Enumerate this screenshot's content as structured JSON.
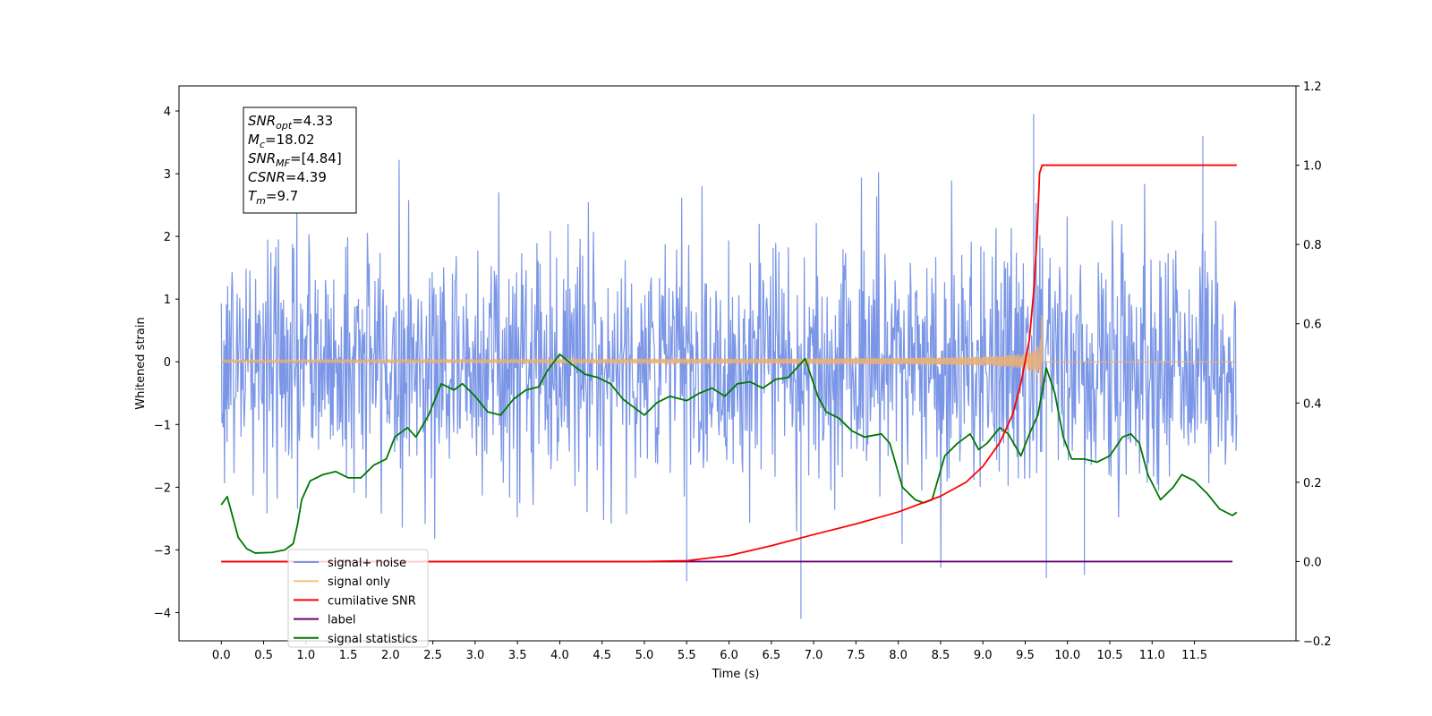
{
  "chart_data": {
    "type": "line",
    "xlabel": "Time (s)",
    "ylabel": "Whitened strain",
    "xlim": [
      -0.5,
      12.7
    ],
    "ylim": [
      -4.45,
      4.4
    ],
    "y2lim": [
      -0.2,
      1.2
    ],
    "x_ticks": [
      "0.0",
      "0.5",
      "1.0",
      "1.5",
      "2.0",
      "2.5",
      "3.0",
      "3.5",
      "4.0",
      "4.5",
      "5.0",
      "5.5",
      "6.0",
      "6.5",
      "7.0",
      "7.5",
      "8.0",
      "8.5",
      "9.0",
      "9.5",
      "10.0",
      "10.5",
      "11.0",
      "11.5"
    ],
    "y_ticks": [
      "4",
      "3",
      "2",
      "1",
      "0",
      "−1",
      "−2",
      "−3",
      "−4"
    ],
    "y2_ticks": [
      "1.2",
      "1.0",
      "0.8",
      "0.6",
      "0.4",
      "0.2",
      "0.0",
      "−0.2"
    ],
    "annotation": {
      "lines": [
        {
          "main": "SNR",
          "sub": "opt",
          "rest": "=4.33"
        },
        {
          "main": "M",
          "sub": "c",
          "rest": "=18.02"
        },
        {
          "main": "SNR",
          "sub": "MF",
          "rest": "=[4.84]"
        },
        {
          "main": "CSNR",
          "sub": "",
          "rest": "=4.39"
        },
        {
          "main": "T",
          "sub": "m",
          "rest": "=9.7"
        }
      ]
    },
    "legend": {
      "placement": "bottom-left",
      "entries": [
        {
          "label": "signal+ noise",
          "color": "#7b96e6"
        },
        {
          "label": "signal only",
          "color": "#f5c37a"
        },
        {
          "label": "cumilative SNR",
          "color": "#ff0000"
        },
        {
          "label": "label",
          "color": "#6b006b"
        },
        {
          "label": "signal statistics",
          "color": "#007700"
        }
      ]
    },
    "series": [
      {
        "name": "signal+ noise",
        "axis": "left",
        "color": "#7b96e6",
        "x_range": [
          0.0,
          12.0
        ],
        "samples": 1600,
        "amplitude_std": 1.0,
        "observed_max": 3.95,
        "observed_min": -4.1
      },
      {
        "name": "signal only",
        "axis": "left",
        "color": "#e8b07a",
        "x_range": [
          0.0,
          12.0
        ],
        "chirp_end": 9.7,
        "peak_amplitude": 0.75
      },
      {
        "name": "cumilative SNR",
        "axis": "right",
        "color": "#ff0000",
        "points": [
          [
            0,
            0
          ],
          [
            5.0,
            0
          ],
          [
            5.5,
            0.002
          ],
          [
            6.0,
            0.015
          ],
          [
            6.5,
            0.04
          ],
          [
            7.0,
            0.068
          ],
          [
            7.5,
            0.095
          ],
          [
            8.0,
            0.125
          ],
          [
            8.5,
            0.165
          ],
          [
            8.8,
            0.2
          ],
          [
            9.0,
            0.24
          ],
          [
            9.2,
            0.3
          ],
          [
            9.35,
            0.37
          ],
          [
            9.45,
            0.45
          ],
          [
            9.55,
            0.56
          ],
          [
            9.6,
            0.68
          ],
          [
            9.64,
            0.82
          ],
          [
            9.67,
            0.98
          ],
          [
            9.7,
            1.0
          ],
          [
            12.0,
            1.0
          ]
        ]
      },
      {
        "name": "label",
        "axis": "right",
        "color": "#6b006b",
        "points": [
          [
            0,
            0
          ],
          [
            11.95,
            0
          ]
        ]
      },
      {
        "name": "signal statistics",
        "axis": "left",
        "color": "#007700",
        "points": [
          [
            0,
            -2.28
          ],
          [
            0.07,
            -2.15
          ],
          [
            0.12,
            -2.4
          ],
          [
            0.2,
            -2.8
          ],
          [
            0.3,
            -2.98
          ],
          [
            0.4,
            -3.05
          ],
          [
            0.6,
            -3.04
          ],
          [
            0.75,
            -3.0
          ],
          [
            0.85,
            -2.9
          ],
          [
            0.9,
            -2.6
          ],
          [
            0.95,
            -2.2
          ],
          [
            1.05,
            -1.9
          ],
          [
            1.2,
            -1.8
          ],
          [
            1.35,
            -1.75
          ],
          [
            1.5,
            -1.85
          ],
          [
            1.65,
            -1.85
          ],
          [
            1.8,
            -1.65
          ],
          [
            1.95,
            -1.55
          ],
          [
            2.05,
            -1.2
          ],
          [
            2.2,
            -1.05
          ],
          [
            2.3,
            -1.2
          ],
          [
            2.45,
            -0.85
          ],
          [
            2.6,
            -0.35
          ],
          [
            2.75,
            -0.45
          ],
          [
            2.85,
            -0.35
          ],
          [
            3.0,
            -0.55
          ],
          [
            3.15,
            -0.8
          ],
          [
            3.3,
            -0.85
          ],
          [
            3.45,
            -0.6
          ],
          [
            3.6,
            -0.45
          ],
          [
            3.75,
            -0.4
          ],
          [
            3.85,
            -0.15
          ],
          [
            4.0,
            0.12
          ],
          [
            4.15,
            -0.05
          ],
          [
            4.3,
            -0.2
          ],
          [
            4.45,
            -0.25
          ],
          [
            4.6,
            -0.35
          ],
          [
            4.75,
            -0.6
          ],
          [
            4.9,
            -0.75
          ],
          [
            5.0,
            -0.85
          ],
          [
            5.15,
            -0.65
          ],
          [
            5.3,
            -0.55
          ],
          [
            5.5,
            -0.62
          ],
          [
            5.65,
            -0.5
          ],
          [
            5.8,
            -0.42
          ],
          [
            5.95,
            -0.55
          ],
          [
            6.1,
            -0.35
          ],
          [
            6.25,
            -0.32
          ],
          [
            6.4,
            -0.42
          ],
          [
            6.55,
            -0.28
          ],
          [
            6.7,
            -0.25
          ],
          [
            6.9,
            0.05
          ],
          [
            7.05,
            -0.55
          ],
          [
            7.15,
            -0.8
          ],
          [
            7.3,
            -0.9
          ],
          [
            7.45,
            -1.1
          ],
          [
            7.6,
            -1.2
          ],
          [
            7.8,
            -1.15
          ],
          [
            7.9,
            -1.3
          ],
          [
            8.05,
            -2.0
          ],
          [
            8.2,
            -2.2
          ],
          [
            8.3,
            -2.25
          ],
          [
            8.4,
            -2.2
          ],
          [
            8.55,
            -1.5
          ],
          [
            8.7,
            -1.3
          ],
          [
            8.85,
            -1.15
          ],
          [
            8.95,
            -1.4
          ],
          [
            9.05,
            -1.3
          ],
          [
            9.2,
            -1.05
          ],
          [
            9.3,
            -1.15
          ],
          [
            9.45,
            -1.5
          ],
          [
            9.55,
            -1.15
          ],
          [
            9.65,
            -0.85
          ],
          [
            9.75,
            -0.1
          ],
          [
            9.85,
            -0.5
          ],
          [
            9.95,
            -1.2
          ],
          [
            10.05,
            -1.55
          ],
          [
            10.2,
            -1.55
          ],
          [
            10.35,
            -1.6
          ],
          [
            10.5,
            -1.5
          ],
          [
            10.65,
            -1.2
          ],
          [
            10.75,
            -1.15
          ],
          [
            10.85,
            -1.3
          ],
          [
            10.95,
            -1.8
          ],
          [
            11.1,
            -2.2
          ],
          [
            11.25,
            -2.0
          ],
          [
            11.35,
            -1.8
          ],
          [
            11.5,
            -1.9
          ],
          [
            11.65,
            -2.1
          ],
          [
            11.8,
            -2.35
          ],
          [
            11.95,
            -2.45
          ],
          [
            12.0,
            -2.4
          ]
        ]
      }
    ]
  }
}
